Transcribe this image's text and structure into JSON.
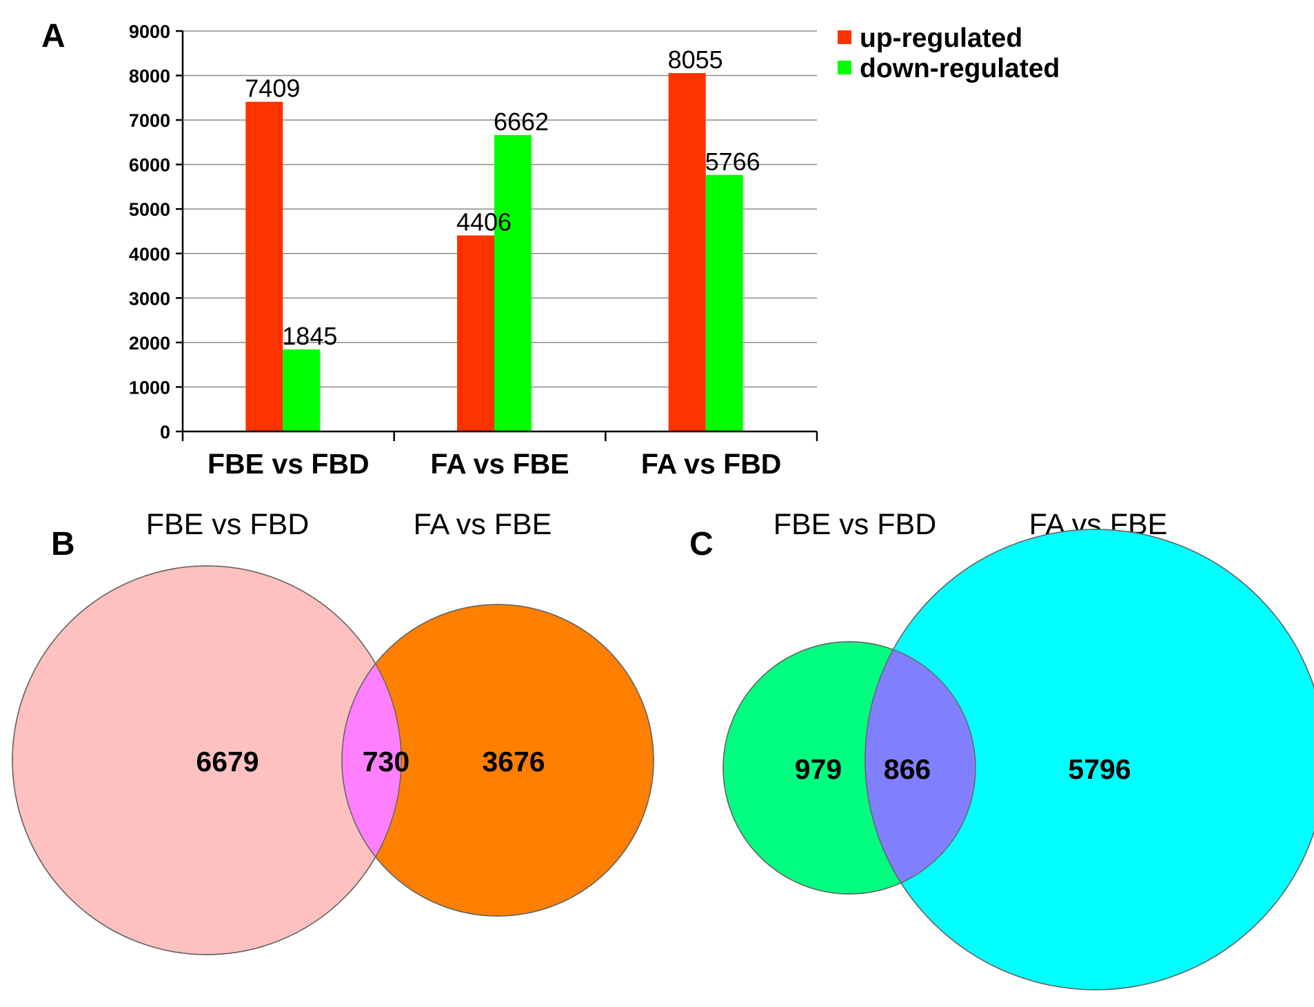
{
  "chart_data": [
    {
      "panel": "A",
      "type": "bar",
      "categories": [
        "FBE vs FBD",
        "FA vs FBE",
        "FA vs FBD"
      ],
      "series": [
        {
          "name": "up-regulated",
          "color": "#ff3300",
          "values": [
            7409,
            4406,
            8055
          ]
        },
        {
          "name": "down-regulated",
          "color": "#00ff00",
          "values": [
            1845,
            6662,
            5766
          ]
        }
      ],
      "yticks": [
        "0",
        "1000",
        "2000",
        "3000",
        "4000",
        "5000",
        "6000",
        "7000",
        "8000",
        "9000"
      ],
      "ylim": [
        0,
        9000
      ],
      "grid": true,
      "legend_position": "top-right",
      "title": "",
      "xlabel": "",
      "ylabel": ""
    },
    {
      "panel": "B",
      "type": "venn",
      "sets": [
        {
          "name": "FBE vs FBD",
          "color": "#ffc0c0",
          "only": "6679"
        },
        {
          "name": "FA vs FBE",
          "color": "#ff7f00",
          "only": "3676"
        }
      ],
      "intersection": {
        "value": "730",
        "color": "#ff80ff"
      }
    },
    {
      "panel": "C",
      "type": "venn",
      "sets": [
        {
          "name": "FBE vs FBD",
          "color": "#00ff80",
          "only": "979"
        },
        {
          "name": "FA vs FBE",
          "color": "#00ffff",
          "only": "5796"
        }
      ],
      "intersection": {
        "value": "866",
        "color": "#8080ff"
      }
    }
  ]
}
